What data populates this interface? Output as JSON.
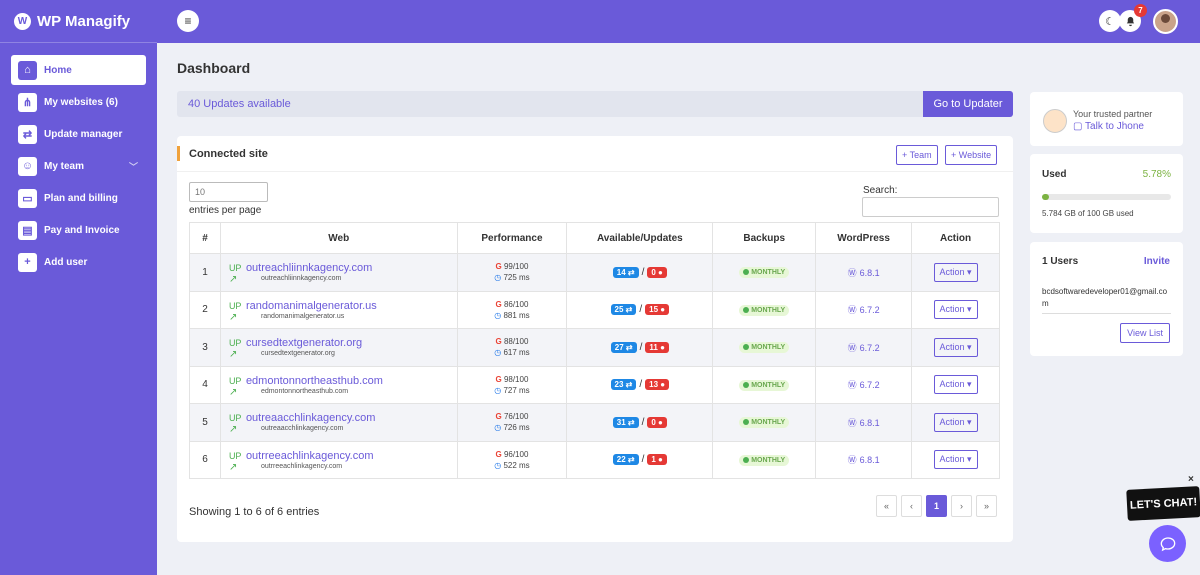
{
  "brand": {
    "name": "WP Managify",
    "logo": "W"
  },
  "sidebar": {
    "items": [
      {
        "label": "Home",
        "icon": "home-icon",
        "glyph": "⌂"
      },
      {
        "label": "My websites (6)",
        "icon": "sitemap-icon",
        "glyph": "⋔"
      },
      {
        "label": "Update manager",
        "icon": "exchange-icon",
        "glyph": "⇄"
      },
      {
        "label": "My team",
        "icon": "users-icon",
        "glyph": "☺"
      },
      {
        "label": "Plan and billing",
        "icon": "card-icon",
        "glyph": "▭"
      },
      {
        "label": "Pay and Invoice",
        "icon": "invoice-icon",
        "glyph": "▤"
      },
      {
        "label": "Add user",
        "icon": "add-user-icon",
        "glyph": "+"
      }
    ]
  },
  "topbar": {
    "notification_count": "7"
  },
  "page": {
    "title": "Dashboard"
  },
  "updates": {
    "text": "40 Updates available",
    "button": "Go to Updater"
  },
  "connected": {
    "title": "Connected site",
    "team_btn": "+ Team",
    "website_btn": "+ Website",
    "length_value": "10",
    "length_label": "entries per page",
    "search_label": "Search:",
    "columns": [
      "#",
      "Web",
      "Performance",
      "Available/Updates",
      "Backups",
      "WordPress",
      "Action"
    ],
    "showing": "Showing 1 to 6 of 6 entries",
    "pager": [
      "«",
      "‹",
      "1",
      "›",
      "»"
    ]
  },
  "rows": [
    {
      "num": "1",
      "status": "UP",
      "site": "outreachliinnkagency.com",
      "sub": "outreachliinnkagency.com",
      "score": "99/100",
      "time": "725 ms",
      "available": "14",
      "updates": "0",
      "backup": "MONTHLY",
      "wp": "6.8.1",
      "action": "Action"
    },
    {
      "num": "2",
      "status": "UP",
      "site": "randomanimalgenerator.us",
      "sub": "randomanimalgenerator.us",
      "score": "86/100",
      "time": "881 ms",
      "available": "25",
      "updates": "15",
      "backup": "MONTHLY",
      "wp": "6.7.2",
      "action": "Action"
    },
    {
      "num": "3",
      "status": "UP",
      "site": "cursedtextgenerator.org",
      "sub": "cursedtextgenerator.org",
      "score": "88/100",
      "time": "617 ms",
      "available": "27",
      "updates": "11",
      "backup": "MONTHLY",
      "wp": "6.7.2",
      "action": "Action"
    },
    {
      "num": "4",
      "status": "UP",
      "site": "edmontonnortheasthub.com",
      "sub": "edmontonnortheasthub.com",
      "score": "98/100",
      "time": "727 ms",
      "available": "23",
      "updates": "13",
      "backup": "MONTHLY",
      "wp": "6.7.2",
      "action": "Action"
    },
    {
      "num": "5",
      "status": "UP",
      "site": "outreaacchlinkagency.com",
      "sub": "outreaacchlinkagency.com",
      "score": "76/100",
      "time": "726 ms",
      "available": "31",
      "updates": "0",
      "backup": "MONTHLY",
      "wp": "6.8.1",
      "action": "Action"
    },
    {
      "num": "6",
      "status": "UP",
      "site": "outrreeachlinkagency.com",
      "sub": "outrreeachlinkagency.com",
      "score": "96/100",
      "time": "522 ms",
      "available": "22",
      "updates": "1",
      "backup": "MONTHLY",
      "wp": "6.8.1",
      "action": "Action"
    }
  ],
  "partner": {
    "label": "Your trusted partner",
    "link": "Talk to Jhone"
  },
  "storage": {
    "label": "Used",
    "percent": "5.78%",
    "fill_fraction": 0.0578,
    "detail": "5.784 GB of 100 GB used"
  },
  "users": {
    "label": "1 Users",
    "invite": "Invite",
    "email": "bcdsoftwaredeveloper01@gmail.com",
    "view": "View List"
  },
  "chat": {
    "label": "LET'S CHAT!",
    "close": "×"
  },
  "colors": {
    "accent": "#6a5ad9",
    "success": "#4caf50",
    "danger": "#e53935",
    "info": "#1e88e5"
  }
}
